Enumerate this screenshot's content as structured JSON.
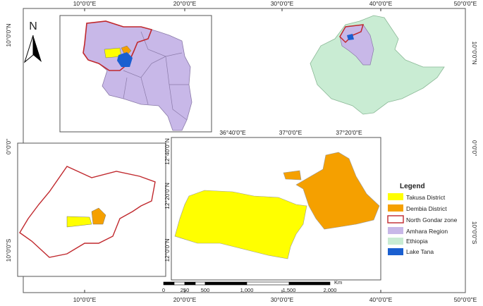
{
  "frame": {
    "top_labels": [
      "10°0'0\"E",
      "20°0'0\"E",
      "30°0'0\"E",
      "40°0'0\"E",
      "50°0'0\"E"
    ],
    "bottom_labels": [
      "10°0'0\"E",
      "20°0'0\"E",
      "30°0'0\"E",
      "40°0'0\"E",
      "50°0'0\"E"
    ],
    "left_labels": [
      "10°0'0\"N",
      "0°0'0\"",
      "10°0'0\"S"
    ],
    "right_labels": [
      "10°0'0\"N",
      "0°0'0\"",
      "10°0'0\"S"
    ]
  },
  "north_arrow": {
    "label": "N"
  },
  "detail_map": {
    "top_labels": [
      "36°40'0\"E",
      "37°0'0\"E",
      "37°20'0\"E"
    ],
    "left_labels": [
      "12°40'0\"N",
      "12°20'0\"N",
      "12°0'0\"N"
    ]
  },
  "legend": {
    "title": "Legend",
    "items": [
      {
        "label": "Takusa District"
      },
      {
        "label": "Dembia District"
      },
      {
        "label": "North Gondar zone"
      },
      {
        "label": "Amhara Region"
      },
      {
        "label": "Ethiopia"
      },
      {
        "label": "Lake Tana"
      }
    ]
  },
  "scale_bar": {
    "unit": "Km",
    "labels": [
      "0",
      "250",
      "500",
      "1,000",
      "1,500",
      "2,000"
    ]
  }
}
